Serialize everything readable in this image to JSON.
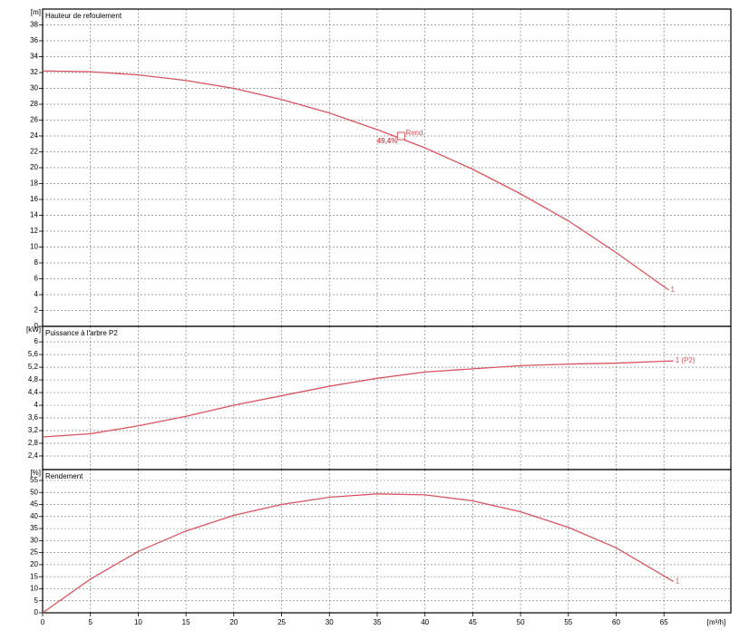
{
  "chart_data": [
    {
      "type": "line",
      "title": "Hauteur de refoulement",
      "y_unit": "[m]",
      "x": [
        0,
        5,
        10,
        15,
        20,
        25,
        30,
        35,
        40,
        45,
        50,
        55,
        60,
        65,
        65.5
      ],
      "series": [
        {
          "name": "1",
          "color": "#d9545f",
          "values": [
            32.2,
            32.1,
            31.7,
            31.0,
            30.0,
            28.6,
            26.9,
            24.8,
            22.5,
            19.8,
            16.7,
            13.3,
            9.3,
            5.0,
            4.6
          ]
        }
      ],
      "annotation": {
        "label": "Rend.",
        "value_label": "49,4%",
        "x": 37.5,
        "y": 24
      },
      "xlim": [
        0,
        72
      ],
      "ylim": [
        0,
        40
      ],
      "yticks": [
        0,
        2,
        4,
        6,
        8,
        10,
        12,
        14,
        16,
        18,
        20,
        22,
        24,
        26,
        28,
        30,
        32,
        34,
        36,
        38
      ],
      "grid": true
    },
    {
      "type": "line",
      "title": "Puissance à l'arbre P2",
      "y_unit": "[kW]",
      "x": [
        0,
        5,
        10,
        15,
        20,
        25,
        30,
        35,
        40,
        45,
        50,
        55,
        60,
        66
      ],
      "series": [
        {
          "name": "1 (P2)",
          "color": "#d9545f",
          "values": [
            3.0,
            3.1,
            3.35,
            3.65,
            4.0,
            4.3,
            4.6,
            4.85,
            5.05,
            5.15,
            5.25,
            5.3,
            5.33,
            5.4
          ]
        }
      ],
      "xlim": [
        0,
        72
      ],
      "ylim": [
        1.97,
        6.49
      ],
      "yticks": [
        {
          "value": 2.4,
          "label": "2,4"
        },
        {
          "value": 2.8,
          "label": "2,8"
        },
        {
          "value": 3.2,
          "label": "3,2"
        },
        {
          "value": 3.6,
          "label": "3,6"
        },
        4,
        {
          "value": 4.4,
          "label": "4,4"
        },
        {
          "value": 4.8,
          "label": "4,8"
        },
        {
          "value": 5.2,
          "label": "5,2"
        },
        {
          "value": 5.6,
          "label": "5,6"
        },
        6
      ],
      "grid": true
    },
    {
      "type": "line",
      "title": "Rendement",
      "y_unit": "[%]",
      "x_label": "[m³/h]",
      "x": [
        0,
        5,
        10,
        15,
        20,
        25,
        30,
        35,
        40,
        45,
        50,
        55,
        60,
        66
      ],
      "series": [
        {
          "name": "1",
          "color": "#d9545f",
          "values": [
            0,
            14,
            25.5,
            34,
            40.5,
            45,
            48,
            49.4,
            49,
            46.5,
            42,
            35.5,
            27,
            13
          ]
        }
      ],
      "xlim": [
        0,
        72
      ],
      "ylim": [
        0,
        59.5
      ],
      "xticks": [
        0,
        5,
        10,
        15,
        20,
        25,
        30,
        35,
        40,
        45,
        50,
        55,
        60,
        65
      ],
      "yticks": [
        0,
        5,
        10,
        15,
        20,
        25,
        30,
        35,
        40,
        45,
        50,
        55
      ],
      "grid": true
    }
  ]
}
